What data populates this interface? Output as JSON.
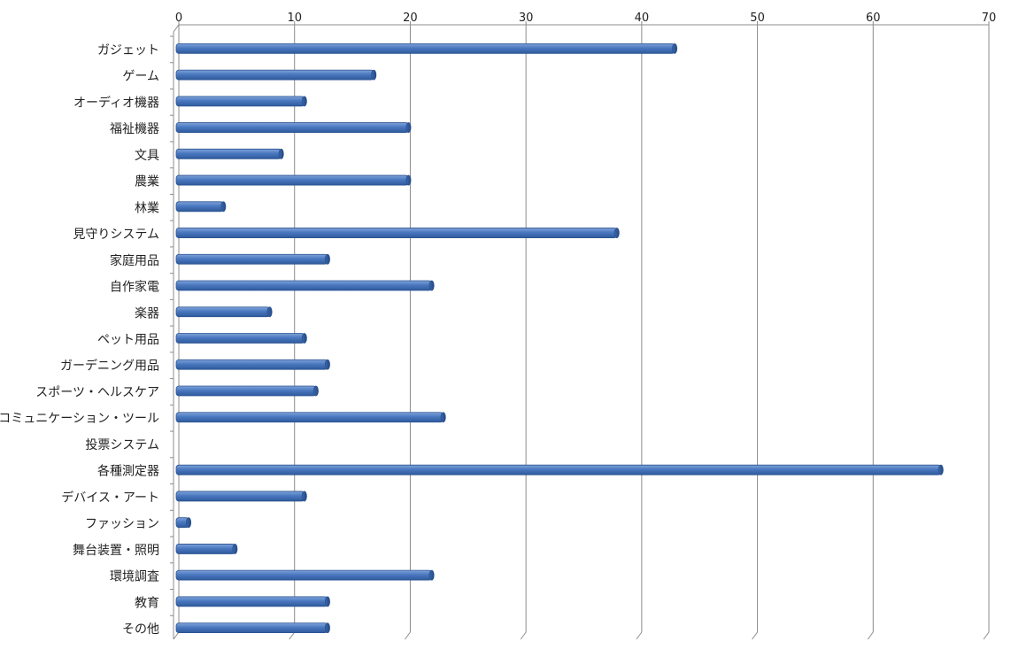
{
  "chart_data": {
    "type": "bar",
    "orientation": "horizontal",
    "title": "",
    "xlabel": "",
    "ylabel": "",
    "xlim": [
      0,
      70
    ],
    "x_ticks": [
      0,
      10,
      20,
      30,
      40,
      50,
      60,
      70
    ],
    "x_axis_position": "top",
    "grid": "vertical",
    "legend": "none",
    "bar_color": "#4a78bf",
    "categories": [
      "ガジェット",
      "ゲーム",
      "オーディオ機器",
      "福祉機器",
      "文具",
      "農業",
      "林業",
      "見守りシステム",
      "家庭用品",
      "自作家電",
      "楽器",
      "ペット用品",
      "ガーデニング用品",
      "スポーツ・ヘルスケア",
      "コミュニケーション・ツール",
      "投票システム",
      "各種測定器",
      "デバイス・アート",
      "ファッション",
      "舞台装置・照明",
      "環境調査",
      "教育",
      "その他"
    ],
    "values": [
      43,
      17,
      11,
      20,
      9,
      20,
      4,
      38,
      13,
      22,
      8,
      11,
      13,
      12,
      23,
      0,
      66,
      11,
      1,
      5,
      22,
      13,
      13
    ]
  }
}
